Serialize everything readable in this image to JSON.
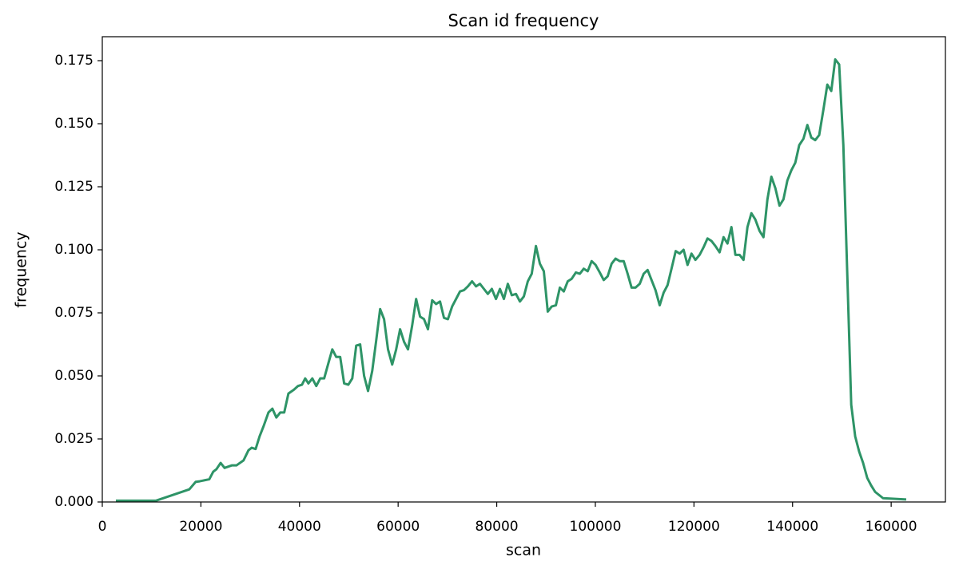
{
  "chart_data": {
    "type": "line",
    "title": "Scan id frequency",
    "x_label": "scan",
    "y_label": "frequency",
    "color": "#2e9467",
    "grid": false,
    "xlim": [
      0,
      171000
    ],
    "ylim": [
      0,
      0.1845
    ],
    "xticks": [
      0,
      20000,
      40000,
      60000,
      80000,
      100000,
      120000,
      140000,
      160000
    ],
    "yticks": [
      {
        "value": 0,
        "label": "0.000"
      },
      {
        "value": 0.025,
        "label": "0.025"
      },
      {
        "value": 0.05,
        "label": "0.050"
      },
      {
        "value": 0.075,
        "label": "0.075"
      },
      {
        "value": 0.1,
        "label": "0.100"
      },
      {
        "value": 0.125,
        "label": "0.125"
      },
      {
        "value": 0.15,
        "label": "0.150"
      },
      {
        "value": 0.175,
        "label": "0.175"
      }
    ],
    "x": [
      2750,
      10850,
      17650,
      18950,
      19750,
      21700,
      22500,
      23150,
      24000,
      24800,
      26250,
      27200,
      28650,
      29650,
      30300,
      31100,
      31900,
      32700,
      33700,
      34500,
      35300,
      36100,
      36900,
      37750,
      38850,
      39700,
      40500,
      41150,
      41800,
      42600,
      43400,
      44200,
      45000,
      45850,
      46650,
      47450,
      48250,
      49050,
      49900,
      50700,
      51500,
      52300,
      53100,
      53900,
      54750,
      55550,
      56350,
      57150,
      57950,
      58800,
      59600,
      60400,
      61200,
      62000,
      62850,
      63650,
      64450,
      65250,
      66050,
      66900,
      67700,
      68500,
      69300,
      70100,
      70950,
      71750,
      72550,
      73350,
      74150,
      75000,
      75800,
      76600,
      77400,
      78200,
      79000,
      79850,
      80650,
      81450,
      82250,
      83050,
      83900,
      84700,
      85500,
      86300,
      87100,
      87950,
      88750,
      89550,
      90350,
      91150,
      92000,
      92800,
      93600,
      94400,
      95200,
      96050,
      96850,
      97650,
      98450,
      99250,
      100050,
      100900,
      101700,
      102500,
      103300,
      104100,
      104950,
      105750,
      106550,
      107350,
      108150,
      109000,
      109800,
      110600,
      111400,
      112200,
      113050,
      113850,
      114650,
      115450,
      116300,
      117100,
      117900,
      118700,
      119500,
      120300,
      121150,
      121950,
      122750,
      123550,
      124350,
      125200,
      126000,
      126800,
      127600,
      128400,
      129250,
      130050,
      130850,
      131650,
      132450,
      133300,
      134100,
      134900,
      135700,
      136500,
      137350,
      138150,
      138950,
      139750,
      140550,
      141350,
      142200,
      143000,
      143800,
      144600,
      145400,
      146250,
      147050,
      147850,
      148650,
      149450,
      150300,
      151100,
      151900,
      152700,
      153500,
      154300,
      155150,
      155950,
      156750,
      158350,
      163050
    ],
    "values": [
      0.0005,
      0.0005,
      0.005,
      0.008,
      0.0082,
      0.009,
      0.012,
      0.013,
      0.0155,
      0.0135,
      0.0145,
      0.0145,
      0.0165,
      0.0205,
      0.0215,
      0.021,
      0.026,
      0.03,
      0.0355,
      0.037,
      0.0335,
      0.0355,
      0.0355,
      0.043,
      0.0445,
      0.046,
      0.0465,
      0.049,
      0.047,
      0.049,
      0.046,
      0.049,
      0.049,
      0.055,
      0.0605,
      0.0575,
      0.0575,
      0.047,
      0.0465,
      0.049,
      0.062,
      0.0625,
      0.05,
      0.044,
      0.052,
      0.064,
      0.0765,
      0.0725,
      0.0605,
      0.0545,
      0.0605,
      0.0685,
      0.0635,
      0.0605,
      0.07,
      0.0805,
      0.0735,
      0.0725,
      0.0685,
      0.08,
      0.0785,
      0.0795,
      0.073,
      0.0725,
      0.0775,
      0.0805,
      0.0835,
      0.084,
      0.0855,
      0.0875,
      0.0855,
      0.0865,
      0.0845,
      0.0825,
      0.0845,
      0.0805,
      0.0845,
      0.0805,
      0.0865,
      0.082,
      0.0825,
      0.0795,
      0.0815,
      0.0875,
      0.0905,
      0.1015,
      0.0945,
      0.0915,
      0.0755,
      0.0775,
      0.078,
      0.085,
      0.0835,
      0.0875,
      0.0885,
      0.091,
      0.0905,
      0.0925,
      0.0915,
      0.0955,
      0.094,
      0.091,
      0.088,
      0.0895,
      0.0945,
      0.0965,
      0.0955,
      0.0955,
      0.0905,
      0.085,
      0.085,
      0.0865,
      0.0905,
      0.092,
      0.088,
      0.084,
      0.078,
      0.083,
      0.086,
      0.0925,
      0.0995,
      0.0985,
      0.1,
      0.094,
      0.0985,
      0.096,
      0.098,
      0.101,
      0.1045,
      0.1035,
      0.1015,
      0.099,
      0.105,
      0.1025,
      0.109,
      0.098,
      0.098,
      0.096,
      0.109,
      0.1145,
      0.112,
      0.1075,
      0.105,
      0.12,
      0.129,
      0.1245,
      0.1175,
      0.12,
      0.1275,
      0.1315,
      0.1345,
      0.1415,
      0.144,
      0.1495,
      0.1445,
      0.1435,
      0.1455,
      0.1555,
      0.1655,
      0.163,
      0.1755,
      0.1735,
      0.1415,
      0.09,
      0.0385,
      0.026,
      0.02,
      0.0155,
      0.0095,
      0.0065,
      0.004,
      0.0015,
      0.001
    ]
  }
}
